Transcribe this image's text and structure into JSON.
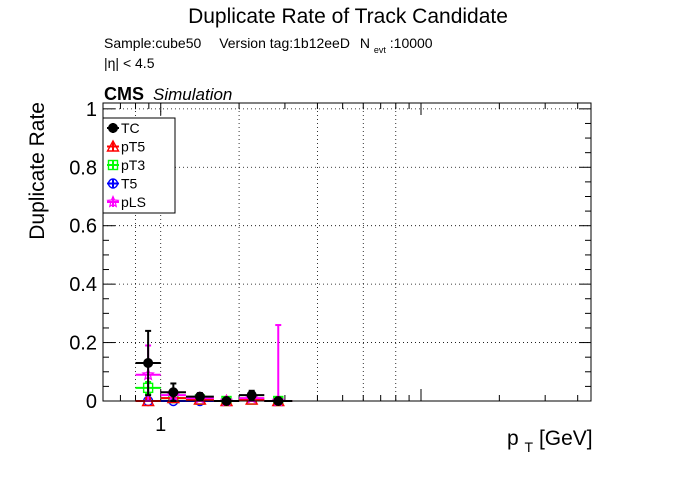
{
  "chart_data": {
    "type": "scatter",
    "title": "Duplicate Rate of Track Candidate",
    "subtitle": {
      "sample_label": "Sample:cube50",
      "version_label": "Version tag:1b12eeD",
      "nevt_symbol": "N",
      "nevt_subscript": "evt",
      "nevt_value": ":10000",
      "eta_cut": "|η| < 4.5"
    },
    "experiment_label": "CMS",
    "experiment_sublabel": "Simulation",
    "xlabel": "p",
    "xlabel_subscript": "T",
    "xlabel_unit": " [GeV]",
    "ylabel": "Duplicate Rate",
    "x_scale": "log",
    "xlim": [
      0.6,
      45
    ],
    "ylim": [
      0,
      1.02
    ],
    "x_tick_labels": [
      {
        "value": 1,
        "label": "1"
      }
    ],
    "y_ticks": [
      0,
      0.2,
      0.4,
      0.6,
      0.8,
      1
    ],
    "y_tick_labels": [
      "0",
      "0.2",
      "0.4",
      "0.6",
      "0.8",
      "1"
    ],
    "grid": true,
    "legend": {
      "placement": "top-left"
    },
    "series": [
      {
        "name": "TC",
        "color": "#000000",
        "marker": "filled-circle",
        "points": [
          {
            "xlow": 0.8,
            "xhigh": 1.0,
            "y": 0.13,
            "err": 0.11
          },
          {
            "xlow": 1.0,
            "xhigh": 1.25,
            "y": 0.03,
            "err": 0.03
          },
          {
            "xlow": 1.25,
            "xhigh": 1.6,
            "y": 0.015,
            "err": 0.012
          },
          {
            "xlow": 1.6,
            "xhigh": 2.0,
            "y": 0.0,
            "err": 0.008
          },
          {
            "xlow": 2.0,
            "xhigh": 2.5,
            "y": 0.02,
            "err": 0.015
          },
          {
            "xlow": 2.5,
            "xhigh": 3.2,
            "y": 0.0,
            "err": 0.005
          }
        ]
      },
      {
        "name": "pT5",
        "color": "#ff0000",
        "marker": "open-triangle",
        "points": [
          {
            "xlow": 0.8,
            "xhigh": 1.0,
            "y": 0.0,
            "err": 0.01
          },
          {
            "xlow": 1.0,
            "xhigh": 1.25,
            "y": 0.01,
            "err": 0.01
          },
          {
            "xlow": 1.25,
            "xhigh": 1.6,
            "y": 0.005,
            "err": 0.005
          },
          {
            "xlow": 1.6,
            "xhigh": 2.0,
            "y": 0.0,
            "err": 0.004
          },
          {
            "xlow": 2.0,
            "xhigh": 2.5,
            "y": 0.005,
            "err": 0.005
          },
          {
            "xlow": 2.5,
            "xhigh": 3.2,
            "y": 0.0,
            "err": 0.003
          }
        ]
      },
      {
        "name": "pT3",
        "color": "#00ff00",
        "marker": "open-square",
        "points": [
          {
            "xlow": 0.8,
            "xhigh": 1.0,
            "y": 0.045,
            "err": 0.02
          },
          {
            "xlow": 1.0,
            "xhigh": 1.25,
            "y": 0.01,
            "err": 0.01
          },
          {
            "xlow": 1.25,
            "xhigh": 1.6,
            "y": 0.005,
            "err": 0.005
          },
          {
            "xlow": 1.6,
            "xhigh": 2.0,
            "y": 0.0,
            "err": 0.004
          },
          {
            "xlow": 2.0,
            "xhigh": 2.5,
            "y": 0.005,
            "err": 0.006
          },
          {
            "xlow": 2.5,
            "xhigh": 3.2,
            "y": 0.0,
            "err": 0.003
          }
        ]
      },
      {
        "name": "T5",
        "color": "#0000ff",
        "marker": "open-circle",
        "points": [
          {
            "xlow": 0.8,
            "xhigh": 1.0,
            "y": 0.0,
            "err": 0.005
          },
          {
            "xlow": 1.0,
            "xhigh": 1.25,
            "y": 0.0,
            "err": 0.004
          },
          {
            "xlow": 1.25,
            "xhigh": 1.6,
            "y": 0.0,
            "err": 0.003
          }
        ]
      },
      {
        "name": "pLS",
        "color": "#ff00ff",
        "marker": "open-star",
        "points": [
          {
            "xlow": 0.8,
            "xhigh": 1.0,
            "y": 0.09,
            "err": 0.1
          },
          {
            "xlow": 1.0,
            "xhigh": 1.25,
            "y": 0.02,
            "err": 0.02
          },
          {
            "xlow": 1.25,
            "xhigh": 1.6,
            "y": 0.01,
            "err": 0.01
          },
          {
            "xlow": 1.6,
            "xhigh": 2.0,
            "y": 0.0,
            "err": 0.006
          },
          {
            "xlow": 2.0,
            "xhigh": 2.5,
            "y": 0.01,
            "err": 0.012
          },
          {
            "xlow": 2.5,
            "xhigh": 3.2,
            "y": 0.0,
            "err": 0.26
          }
        ]
      }
    ]
  }
}
